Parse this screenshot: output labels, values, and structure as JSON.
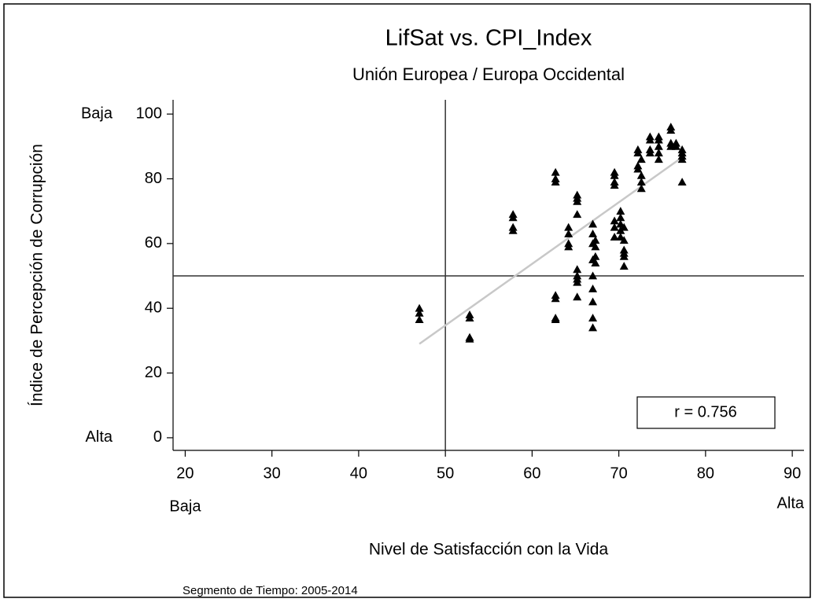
{
  "chart_data": {
    "type": "scatter",
    "title": "LifSat vs. CPI_Index",
    "subtitle": "Unión Europea / Europa Occidental",
    "x_label": "Nivel de Satisfacción con la Vida",
    "y_label": "Índice de Percepción de Corrupción",
    "note": "Segmento de Tiempo: 2005-2014",
    "annotation": "r = 0.756",
    "color": "#000000",
    "fit_color": "#c8c8c8",
    "x": [
      47,
      47,
      47,
      52.8,
      52.8,
      52.8,
      52.8,
      57.8,
      57.8,
      57.8,
      57.8,
      62.7,
      62.7,
      62.7,
      62.7,
      62.7,
      62.7,
      62.7,
      64.2,
      64.2,
      64.2,
      64.2,
      65.2,
      65.2,
      65.2,
      65.2,
      65.2,
      65.2,
      65.2,
      65.2,
      65.2,
      67,
      67,
      67,
      67,
      67,
      67,
      67,
      67,
      67,
      67.3,
      67.3,
      67.3,
      67.3,
      69.5,
      69.5,
      69.5,
      69.5,
      69.5,
      69.5,
      69.5,
      70.2,
      70.2,
      70.2,
      70.2,
      70.2,
      70.6,
      70.6,
      70.6,
      70.6,
      70.6,
      70.6,
      72.2,
      72.2,
      72.2,
      72.2,
      72.6,
      72.6,
      72.6,
      72.6,
      73.6,
      73.6,
      73.6,
      73.6,
      74.6,
      74.6,
      74.6,
      74.6,
      74.6,
      76,
      76,
      76,
      76,
      76.6,
      76.6,
      77.3,
      77.3,
      77.3,
      77.3,
      77.3
    ],
    "values": [
      40,
      38.5,
      36.5,
      38,
      37,
      31,
      30.5,
      69,
      68,
      65,
      64,
      82,
      80,
      79,
      44,
      43,
      37,
      36.5,
      65,
      63,
      60,
      59,
      75,
      74,
      73,
      69,
      52,
      50,
      49,
      48,
      43.5,
      66,
      63,
      60,
      55,
      50,
      46,
      42,
      37,
      34,
      61,
      59,
      56,
      54,
      82,
      81,
      79,
      78,
      67,
      65,
      62,
      70,
      68,
      66,
      64,
      62,
      65,
      61,
      58,
      57,
      56,
      53,
      89,
      88,
      84,
      83,
      86,
      81,
      79,
      77,
      93,
      92,
      89,
      88,
      93,
      92,
      90,
      88,
      86,
      96,
      95,
      91,
      90,
      91,
      90,
      89,
      88,
      87,
      86,
      79
    ],
    "fit_line": {
      "x": [
        47,
        77.5
      ],
      "y": [
        29,
        87
      ]
    },
    "ref_lines": {
      "x": 50,
      "y": 50
    },
    "xlim": [
      18.6,
      91.35
    ],
    "ylim": [
      -3.9,
      104.4
    ],
    "xticks": [
      20,
      30,
      40,
      50,
      60,
      70,
      80,
      90
    ],
    "yticks": [
      0,
      20,
      40,
      60,
      80,
      100
    ],
    "y_end_labels": [
      {
        "value": 100,
        "label": "Baja"
      },
      {
        "value": 0,
        "label": "Alta"
      }
    ],
    "x_end_labels": [
      {
        "value": 20,
        "label": "Baja"
      },
      {
        "value": 90,
        "label": "Alta"
      }
    ]
  }
}
